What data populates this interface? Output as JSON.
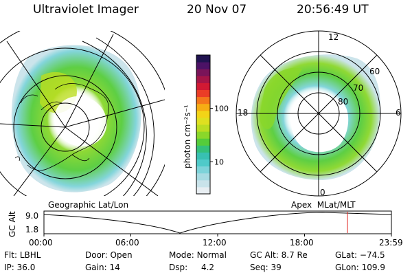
{
  "header": {
    "app_title": "Ultraviolet Imager",
    "date": "20 Nov 07",
    "time": "20:56:49 UT"
  },
  "colorbar": {
    "label": "photon cm⁻²s⁻¹",
    "ticks": [
      {
        "value": "100",
        "level": 100
      },
      {
        "value": "10",
        "level": 10
      }
    ],
    "scale": "log",
    "range": [
      2.5,
      1000
    ],
    "colors": [
      "#e8eef2",
      "#c9e3ea",
      "#a7dbe2",
      "#7dd3d9",
      "#4fcac9",
      "#38c0b2",
      "#34c07a",
      "#55cc3a",
      "#8ad72a",
      "#bbdd22",
      "#dfe020",
      "#f3d417",
      "#f6ad14",
      "#f4781b",
      "#eb3d26",
      "#d11933",
      "#a51547",
      "#7a1459",
      "#4c1266",
      "#201350"
    ]
  },
  "left_panel": {
    "label": "Geographic Lat/Lon"
  },
  "right_panel": {
    "label": "Apex  MLat/MLT",
    "mlt_labels": {
      "top": "12",
      "left": "18",
      "right": "6",
      "bottom": "0"
    },
    "lat_labels": [
      "60",
      "70",
      "80"
    ]
  },
  "altitude_plot": {
    "ylabel": "GC Alt",
    "yticks": [
      "9.0",
      "1.8"
    ],
    "xticks": [
      "00:00",
      "06:00",
      "12:00",
      "18:00",
      "23:59"
    ],
    "current_time_color": "#e0201c"
  },
  "info": {
    "flt_label": "Flt:",
    "flt_value": "LBHL",
    "ip_label": "IP:",
    "ip_value": "36.0",
    "door_label": "Door:",
    "door_value": "Open",
    "gain_label": "Gain:",
    "gain_value": "14",
    "mode_label": "Mode:",
    "mode_value": "Normal",
    "dsp_label": "Dsp:",
    "dsp_value": "4.2",
    "gcalt_label": "GC Alt:",
    "gcalt_value": "8.7 Re",
    "seq_label": "Seq:",
    "seq_value": "39",
    "glat_label": "GLat:",
    "glat_value": "−74.5",
    "glon_label": "GLon:",
    "glon_value": "109.9"
  }
}
